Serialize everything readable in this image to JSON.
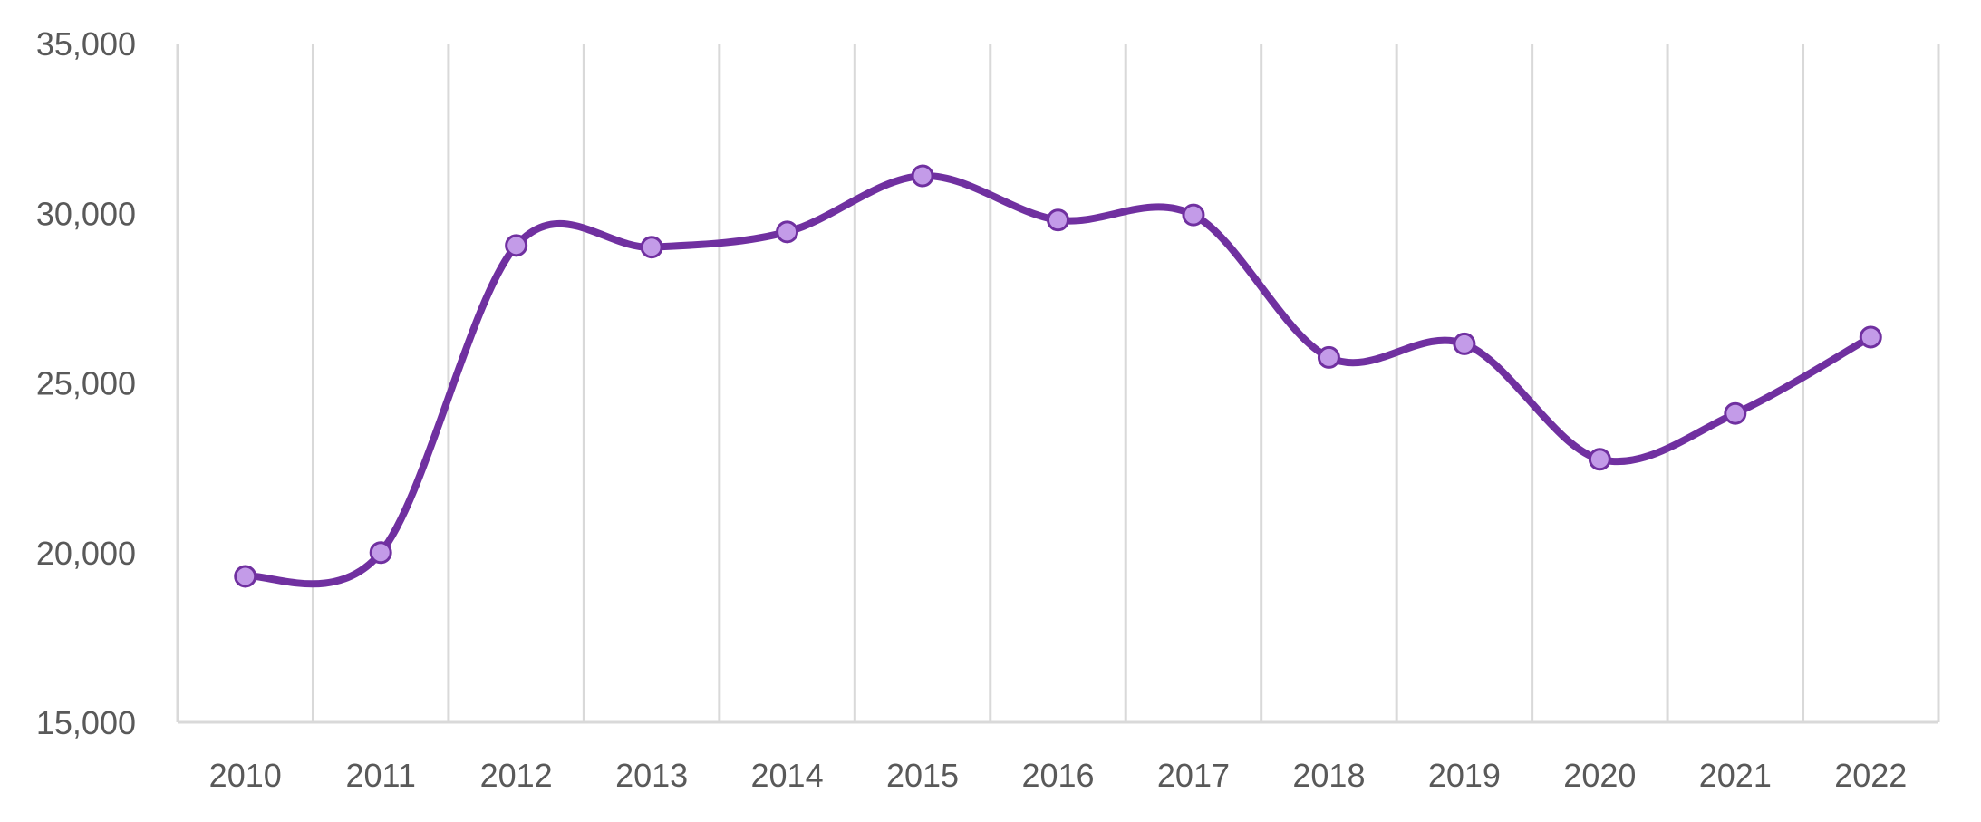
{
  "chart_data": {
    "type": "line",
    "smooth": true,
    "categories": [
      "2010",
      "2011",
      "2012",
      "2013",
      "2014",
      "2015",
      "2016",
      "2017",
      "2018",
      "2019",
      "2020",
      "2021",
      "2022"
    ],
    "series": [
      {
        "values": [
          19300,
          20000,
          29050,
          29000,
          29450,
          31100,
          29800,
          29950,
          25750,
          26150,
          22750,
          24100,
          26350
        ],
        "color": "#7030a0",
        "marker_fill": "#c39be8",
        "marker_stroke": "#7030a0"
      }
    ],
    "ylim": [
      15000,
      35000
    ],
    "yticks": [
      15000,
      20000,
      25000,
      30000,
      35000
    ],
    "ytick_labels": [
      "15,000",
      "20,000",
      "25,000",
      "30,000",
      "35,000"
    ],
    "grid": {
      "vertical": true,
      "horizontal": false,
      "color": "#d9d9d9"
    },
    "label_color": "#595959",
    "legend": "none"
  }
}
